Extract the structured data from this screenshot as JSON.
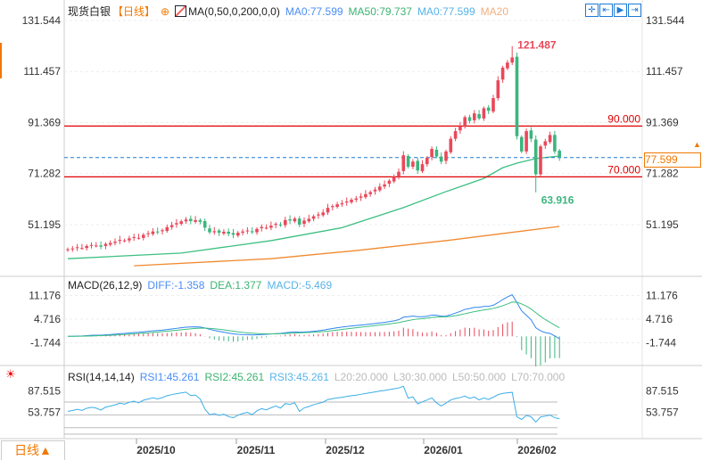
{
  "header": {
    "symbol": "现货白银",
    "period_tag": "【日线】",
    "ma_label": "MA(0,50,0,200,0,0)",
    "ma0": "MA0:77.599",
    "ma50": "MA50:79.737",
    "ma0b": "MA0:77.599",
    "ma20": "MA20"
  },
  "toolbar": {
    "icons": [
      "crosshair-icon",
      "zoom-fit-icon",
      "play-icon",
      "exit-icon"
    ]
  },
  "macd_header": {
    "label": "MACD(26,12,9)",
    "diff": "DIFF:-1.358",
    "dea": "DEA:1.377",
    "macd": "MACD:-5.469"
  },
  "rsi_header": {
    "label": "RSI(14,14,14)",
    "rsi1": "RSI1:45.261",
    "rsi2": "RSI2:45.261",
    "rsi3": "RSI3:45.261",
    "l20": "L20:20.000",
    "l30": "L30:30.000",
    "l50": "L50:50.000",
    "l70": "L70:70.000"
  },
  "period_button": "日线▲",
  "current_price": "77.599",
  "colors": {
    "up": "#e9485a",
    "down": "#3db57e",
    "ma50": "#3cbf80",
    "ma200": "#f08a30",
    "hline": "#e00000",
    "current": "#1e7ad6",
    "diff": "#2f86f0",
    "dea": "#3cbf80",
    "rsi": "#3aaee8"
  },
  "chart_data": {
    "type": "candlestick",
    "price_axis_ticks": [
      "131.544",
      "111.457",
      "91.369",
      "71.282",
      "51.195"
    ],
    "price_ylim": [
      35,
      131.544
    ],
    "x_ticks": [
      "2025/10",
      "2025/11",
      "2025/12",
      "2026/01",
      "2026/02"
    ],
    "closes": [
      41.5,
      41.8,
      42.3,
      42.0,
      42.8,
      43.2,
      43.0,
      42.5,
      43.6,
      44.0,
      44.5,
      45.2,
      45.0,
      45.8,
      46.3,
      46.0,
      47.2,
      47.8,
      48.5,
      48.3,
      49.0,
      50.2,
      51.0,
      51.8,
      52.5,
      53.2,
      52.6,
      53.0,
      52.3,
      50.0,
      48.2,
      48.6,
      48.0,
      48.4,
      47.6,
      47.2,
      48.0,
      48.5,
      48.9,
      48.2,
      49.5,
      50.3,
      50.0,
      50.8,
      51.5,
      51.0,
      53.0,
      52.8,
      53.6,
      51.2,
      52.8,
      53.5,
      54.5,
      55.2,
      56.0,
      57.8,
      58.5,
      59.2,
      59.6,
      60.3,
      61.0,
      61.5,
      62.3,
      63.2,
      64.0,
      65.0,
      66.2,
      67.0,
      68.5,
      70.0,
      72.0,
      78.5,
      74.0,
      76.0,
      72.5,
      75.0,
      77.5,
      81.0,
      78.0,
      76.0,
      80.0,
      85.0,
      88.0,
      90.0,
      93.5,
      92.0,
      95.0,
      93.0,
      97.0,
      96.0,
      101.0,
      108.0,
      113.0,
      115.0,
      117.0,
      86.0,
      80.0,
      88.0,
      85.0,
      71.0,
      82.0,
      84.0,
      86.5,
      80.0,
      77.6
    ],
    "max_annotation": {
      "value": "121.487",
      "index": 94
    },
    "min_annotation": {
      "value": "63.916",
      "index": 99
    },
    "ma50": [
      [
        0,
        37.8
      ],
      [
        24,
        40
      ],
      [
        43,
        44.9
      ],
      [
        58,
        50
      ],
      [
        71,
        57.9
      ],
      [
        80,
        64.2
      ],
      [
        88,
        69.4
      ],
      [
        92,
        73.6
      ],
      [
        95,
        75.4
      ],
      [
        99,
        77.2
      ],
      [
        104,
        78.2
      ]
    ],
    "ma200": [
      [
        14,
        35
      ],
      [
        43,
        37.8
      ],
      [
        61,
        41
      ],
      [
        80,
        44.9
      ],
      [
        92,
        47.7
      ],
      [
        104,
        50.5
      ]
    ],
    "hlines": [
      {
        "value": 90,
        "label": "90.000"
      },
      {
        "value": 70,
        "label": "70.000"
      }
    ],
    "current": 77.599,
    "macd_axis_ticks": [
      "11.176",
      "4.716",
      "-1.744"
    ],
    "rsi_axis_ticks": [
      "87.515",
      "53.757"
    ],
    "rsi_levels": [
      20,
      30,
      50,
      70
    ]
  }
}
